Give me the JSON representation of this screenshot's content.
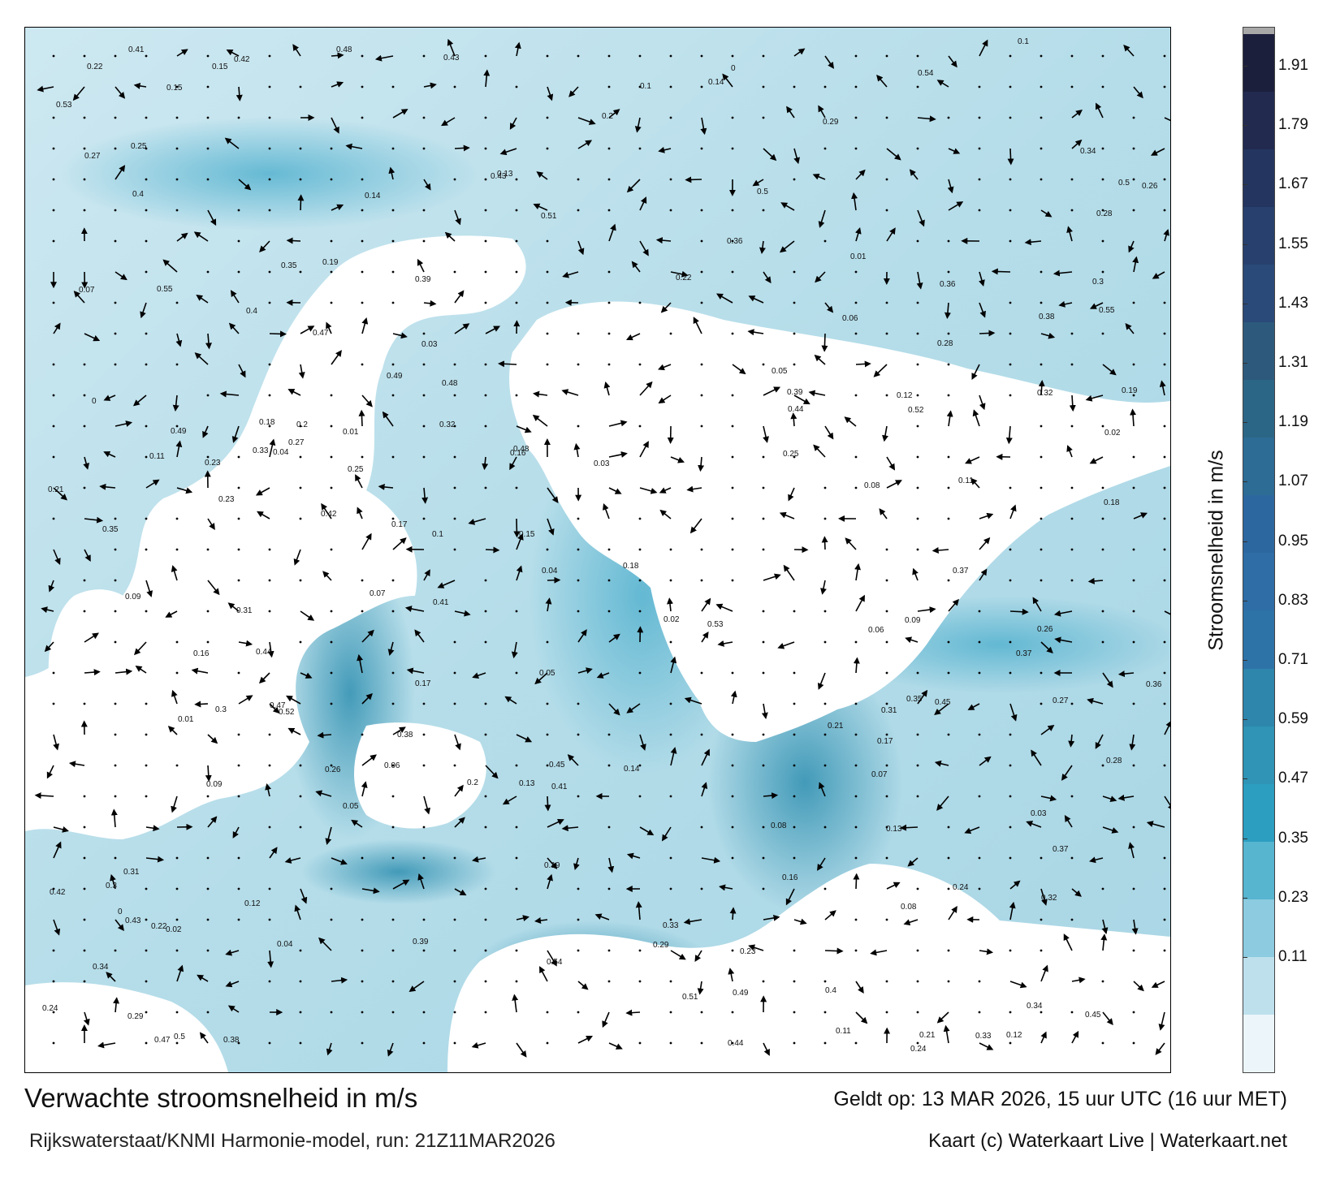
{
  "map": {
    "title": "Verwachte stroomsnelheid in m/s",
    "model_run": "Rijkswaterstaat/KNMI Harmonie-model, run: 21Z11MAR2026",
    "valid_time": "Geldt op: 13 MAR 2026, 15 uur UTC (16 uur MET)",
    "credit": "Kaart (c) Waterkaart Live | Waterkaart.net",
    "land_color": "#ffffff",
    "arrow_color": "#000000"
  },
  "colorbar": {
    "label": "Stroomsnelheid in m/s",
    "ticks": [
      "1.91",
      "1.79",
      "1.67",
      "1.55",
      "1.43",
      "1.31",
      "1.19",
      "1.07",
      "0.95",
      "0.83",
      "0.71",
      "0.59",
      "0.47",
      "0.35",
      "0.23",
      "0.11"
    ],
    "colors": [
      "#a8a8a8",
      "#1c1f3c",
      "#222a50",
      "#24365f",
      "#27406d",
      "#2a4a79",
      "#2d5a7c",
      "#2c6686",
      "#2c6c95",
      "#2d67a0",
      "#2e6da6",
      "#2e73a8",
      "#2e86ac",
      "#2f94b5",
      "#2c9ec0",
      "#57b5d0",
      "#8ccbe0",
      "#bde0ec",
      "#ecf6fa"
    ]
  },
  "labels": [
    {
      "t": "0.05"
    },
    {
      "t": "0.04"
    },
    {
      "t": "0.15"
    },
    {
      "t": "0.09"
    },
    {
      "t": "0.12"
    },
    {
      "t": "0.14"
    },
    {
      "t": "0.13"
    },
    {
      "t": "0.07"
    },
    {
      "t": "0.06"
    },
    {
      "t": "0.08"
    },
    {
      "t": "0.11"
    },
    {
      "t": "0.1"
    },
    {
      "t": "0.22"
    },
    {
      "t": "0.21"
    },
    {
      "t": "0.17"
    },
    {
      "t": "0.16"
    },
    {
      "t": "0.18"
    },
    {
      "t": "0.19"
    },
    {
      "t": "0.28"
    },
    {
      "t": "0.32"
    },
    {
      "t": "0.33"
    },
    {
      "t": "0.27"
    },
    {
      "t": "0.23"
    },
    {
      "t": "0.26"
    },
    {
      "t": "0.24"
    },
    {
      "t": "0.25"
    },
    {
      "t": "0.29"
    },
    {
      "t": "0.31"
    },
    {
      "t": "0.36"
    },
    {
      "t": "0.3"
    },
    {
      "t": "0.38"
    },
    {
      "t": "0.2"
    },
    {
      "t": "0.02"
    },
    {
      "t": "0.03"
    },
    {
      "t": "0.01"
    },
    {
      "t": "0"
    },
    {
      "t": "0.49"
    },
    {
      "t": "0.42"
    },
    {
      "t": "0.44"
    },
    {
      "t": "0.39"
    },
    {
      "t": "0.35"
    },
    {
      "t": "0.34"
    },
    {
      "t": "0.37"
    },
    {
      "t": "0.4"
    },
    {
      "t": "0.41"
    },
    {
      "t": "0.43"
    },
    {
      "t": "0.45"
    },
    {
      "t": "0.47"
    },
    {
      "t": "0.48"
    },
    {
      "t": "0.5"
    },
    {
      "t": "0.51"
    },
    {
      "t": "0.52"
    },
    {
      "t": "0.53"
    },
    {
      "t": "0.54"
    },
    {
      "t": "0.55"
    }
  ]
}
